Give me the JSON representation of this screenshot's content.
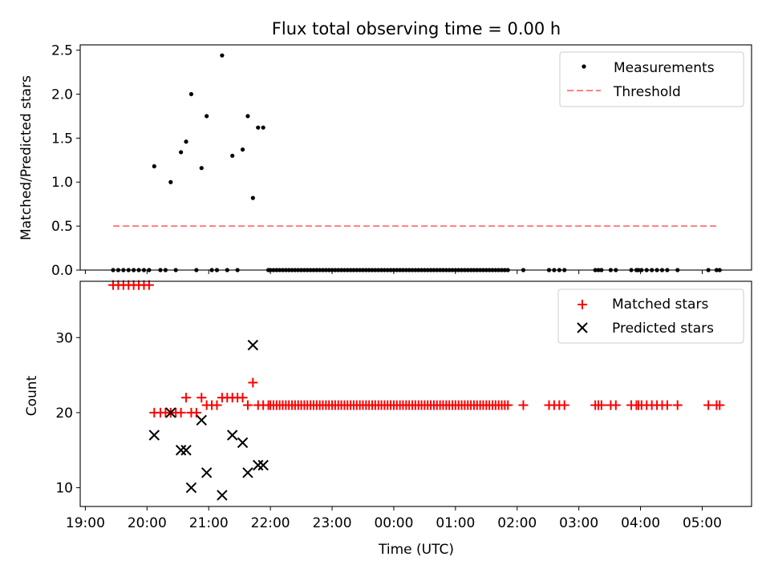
{
  "figure": {
    "title": "Flux total observing time = 0.00 h"
  },
  "chart_data": [
    {
      "type": "scatter",
      "title": "Flux total observing time = 0.00 h",
      "xlabel": "",
      "ylabel": "Matched/Predicted stars",
      "xlim": [
        "18:55",
        "05:48"
      ],
      "ylim": [
        0,
        2.56
      ],
      "yticks": [
        "0.0",
        "0.5",
        "1.0",
        "1.5",
        "2.0",
        "2.5"
      ],
      "legend": {
        "position": "top-right",
        "entries": [
          "Measurements",
          "Threshold"
        ]
      },
      "colors": {
        "measurements": "#000000",
        "threshold": "#ff7f7f"
      },
      "series": [
        {
          "name": "Measurements",
          "marker": "dot",
          "x": [
            "19:27",
            "19:32",
            "19:37",
            "19:42",
            "19:47",
            "19:52",
            "19:57",
            "20:02",
            "20:07",
            "20:13",
            "20:18",
            "20:23",
            "20:28",
            "20:33",
            "20:38",
            "20:43",
            "20:48",
            "20:53",
            "20:58",
            "21:03",
            "21:08",
            "21:13",
            "21:18",
            "21:23",
            "21:28",
            "21:33",
            "21:38",
            "21:43",
            "21:48",
            "21:53",
            "21:58",
            "22:00",
            "22:03",
            "22:06",
            "22:09",
            "22:12",
            "22:15",
            "22:18",
            "22:21",
            "22:24",
            "22:27",
            "22:30",
            "22:33",
            "22:36",
            "22:39",
            "22:42",
            "22:45",
            "22:48",
            "22:51",
            "22:54",
            "22:57",
            "23:00",
            "23:03",
            "23:06",
            "23:09",
            "23:12",
            "23:15",
            "23:18",
            "23:21",
            "23:24",
            "23:27",
            "23:30",
            "23:33",
            "23:36",
            "23:39",
            "23:42",
            "23:45",
            "23:48",
            "23:51",
            "23:54",
            "23:57",
            "00:00",
            "00:03",
            "00:06",
            "00:09",
            "00:12",
            "00:15",
            "00:18",
            "00:21",
            "00:24",
            "00:27",
            "00:30",
            "00:33",
            "00:36",
            "00:39",
            "00:42",
            "00:45",
            "00:48",
            "00:51",
            "00:54",
            "00:57",
            "01:00",
            "01:03",
            "01:06",
            "01:09",
            "01:12",
            "01:15",
            "01:18",
            "01:21",
            "01:24",
            "01:27",
            "01:30",
            "01:33",
            "01:36",
            "01:39",
            "01:42",
            "01:45",
            "01:48",
            "01:51",
            "02:06",
            "02:31",
            "02:36",
            "02:41",
            "02:46",
            "03:16",
            "03:19",
            "03:22",
            "03:31",
            "03:36",
            "03:51",
            "03:56",
            "03:58",
            "04:01",
            "04:06",
            "04:11",
            "04:16",
            "04:21",
            "04:26",
            "04:36",
            "05:06",
            "05:14",
            "05:17"
          ],
          "y": [
            0,
            0,
            0,
            0,
            0,
            0,
            0,
            0,
            1.18,
            0,
            0,
            1.0,
            0,
            1.34,
            1.46,
            2.0,
            0,
            1.16,
            1.75,
            0,
            0,
            2.44,
            0,
            1.3,
            0,
            1.37,
            1.75,
            0.82,
            1.62,
            1.62,
            0,
            0,
            0,
            0,
            0,
            0,
            0,
            0,
            0,
            0,
            0,
            0,
            0,
            0,
            0,
            0,
            0,
            0,
            0,
            0,
            0,
            0,
            0,
            0,
            0,
            0,
            0,
            0,
            0,
            0,
            0,
            0,
            0,
            0,
            0,
            0,
            0,
            0,
            0,
            0,
            0,
            0,
            0,
            0,
            0,
            0,
            0,
            0,
            0,
            0,
            0,
            0,
            0,
            0,
            0,
            0,
            0,
            0,
            0,
            0,
            0,
            0,
            0,
            0,
            0,
            0,
            0,
            0,
            0,
            0,
            0,
            0,
            0,
            0,
            0,
            0,
            0,
            0,
            0,
            0,
            0,
            0,
            0,
            0,
            0,
            0,
            0,
            0,
            0,
            0,
            0,
            0,
            0,
            0,
            0,
            0,
            0,
            0,
            0,
            0,
            0,
            0
          ]
        },
        {
          "name": "Threshold",
          "marker": "dashed-line",
          "x": [
            "19:27",
            "05:14"
          ],
          "y": [
            0.5,
            0.5
          ]
        }
      ]
    },
    {
      "type": "scatter",
      "title": "",
      "xlabel": "Time (UTC)",
      "ylabel": "Count",
      "xlim": [
        "18:55",
        "05:48"
      ],
      "ylim": [
        7.5,
        37.5
      ],
      "yticks": [
        "10",
        "20",
        "30"
      ],
      "xticks": [
        "19:00",
        "20:00",
        "21:00",
        "22:00",
        "23:00",
        "00:00",
        "01:00",
        "02:00",
        "03:00",
        "04:00",
        "05:00"
      ],
      "legend": {
        "position": "top-right",
        "entries": [
          "Matched stars",
          "Predicted stars"
        ]
      },
      "colors": {
        "matched": "#ff0000",
        "predicted": "#000000"
      },
      "series": [
        {
          "name": "Matched stars",
          "marker": "plus",
          "x": [
            "19:27",
            "19:32",
            "19:37",
            "19:42",
            "19:47",
            "19:52",
            "19:57",
            "20:02",
            "20:07",
            "20:13",
            "20:18",
            "20:23",
            "20:28",
            "20:33",
            "20:38",
            "20:43",
            "20:48",
            "20:53",
            "20:58",
            "21:03",
            "21:08",
            "21:13",
            "21:18",
            "21:23",
            "21:28",
            "21:33",
            "21:38",
            "21:43",
            "21:48",
            "21:53",
            "21:58",
            "22:00",
            "22:03",
            "22:06",
            "22:09",
            "22:12",
            "22:15",
            "22:18",
            "22:21",
            "22:24",
            "22:27",
            "22:30",
            "22:33",
            "22:36",
            "22:39",
            "22:42",
            "22:45",
            "22:48",
            "22:51",
            "22:54",
            "22:57",
            "23:00",
            "23:03",
            "23:06",
            "23:09",
            "23:12",
            "23:15",
            "23:18",
            "23:21",
            "23:24",
            "23:27",
            "23:30",
            "23:33",
            "23:36",
            "23:39",
            "23:42",
            "23:45",
            "23:48",
            "23:51",
            "23:54",
            "23:57",
            "00:00",
            "00:03",
            "00:06",
            "00:09",
            "00:12",
            "00:15",
            "00:18",
            "00:21",
            "00:24",
            "00:27",
            "00:30",
            "00:33",
            "00:36",
            "00:39",
            "00:42",
            "00:45",
            "00:48",
            "00:51",
            "00:54",
            "00:57",
            "01:00",
            "01:03",
            "01:06",
            "01:09",
            "01:12",
            "01:15",
            "01:18",
            "01:21",
            "01:24",
            "01:27",
            "01:30",
            "01:33",
            "01:36",
            "01:39",
            "01:42",
            "01:45",
            "01:48",
            "01:51",
            "02:06",
            "02:31",
            "02:36",
            "02:41",
            "02:46",
            "03:16",
            "03:19",
            "03:22",
            "03:31",
            "03:36",
            "03:51",
            "03:56",
            "03:58",
            "04:01",
            "04:06",
            "04:11",
            "04:16",
            "04:21",
            "04:26",
            "04:36",
            "05:06",
            "05:14",
            "05:17"
          ],
          "y": [
            37,
            37,
            37,
            37,
            37,
            37,
            37,
            37,
            20,
            20,
            20,
            20,
            20,
            20,
            22,
            20,
            20,
            22,
            21,
            21,
            21,
            22,
            22,
            22,
            22,
            22,
            21,
            24,
            21,
            21,
            21,
            21,
            21,
            21,
            21,
            21,
            21,
            21,
            21,
            21,
            21,
            21,
            21,
            21,
            21,
            21,
            21,
            21,
            21,
            21,
            21,
            21,
            21,
            21,
            21,
            21,
            21,
            21,
            21,
            21,
            21,
            21,
            21,
            21,
            21,
            21,
            21,
            21,
            21,
            21,
            21,
            21,
            21,
            21,
            21,
            21,
            21,
            21,
            21,
            21,
            21,
            21,
            21,
            21,
            21,
            21,
            21,
            21,
            21,
            21,
            21,
            21,
            21,
            21,
            21,
            21,
            21,
            21,
            21,
            21,
            21,
            21,
            21,
            21,
            21,
            21,
            21,
            21,
            21,
            21,
            21,
            21,
            21,
            21,
            21,
            21,
            21,
            21,
            21,
            21,
            21,
            21,
            21,
            21,
            21,
            21,
            21,
            21,
            21,
            21,
            21,
            21
          ]
        },
        {
          "name": "Predicted stars",
          "marker": "x",
          "x": [
            "20:07",
            "20:23",
            "20:33",
            "20:38",
            "20:43",
            "20:53",
            "20:58",
            "21:13",
            "21:23",
            "21:33",
            "21:38",
            "21:43",
            "21:48",
            "21:53"
          ],
          "y": [
            17,
            20,
            15,
            15,
            10,
            19,
            12,
            9,
            17,
            16,
            12,
            29,
            13,
            13
          ]
        }
      ]
    }
  ]
}
